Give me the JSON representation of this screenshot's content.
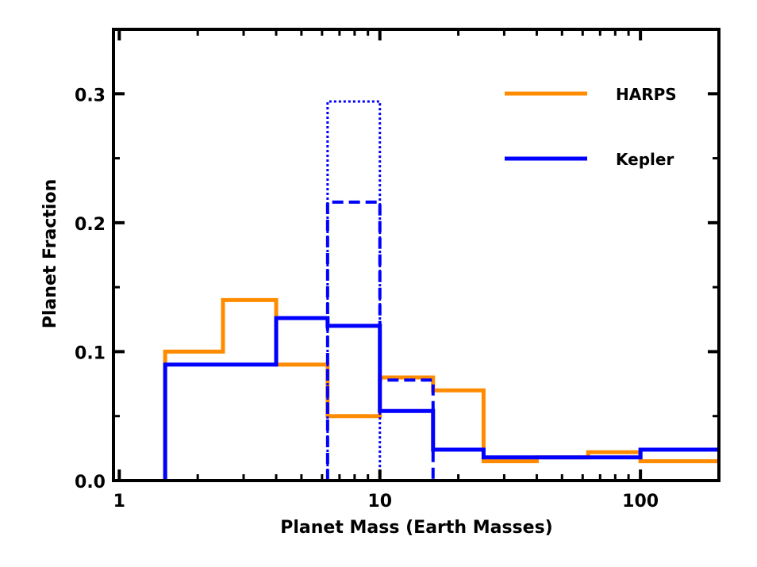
{
  "chart_data": {
    "type": "step",
    "title": "",
    "xlabel": "Planet Mass (Earth Masses)",
    "ylabel": "Planet Fraction",
    "xscale": "log",
    "xlim": [
      0.95,
      200
    ],
    "ylim": [
      0.0,
      0.35
    ],
    "xticks": [
      1,
      10,
      100
    ],
    "xtick_labels": [
      "1",
      "10",
      "100"
    ],
    "yticks": [
      0.0,
      0.1,
      0.2,
      0.3
    ],
    "ytick_labels": [
      "0.0",
      "0.1",
      "0.2",
      "0.3"
    ],
    "legend_position": "top-right",
    "series": [
      {
        "name": "HARPS",
        "color": "#ff8c00",
        "style": "solid",
        "in_legend": true,
        "bin_edges": [
          1.5,
          2.5,
          4.0,
          6.3,
          10.0,
          16.0,
          25.0,
          40.0,
          63.0,
          100.0,
          200.0
        ],
        "values": [
          0.1,
          0.14,
          0.09,
          0.05,
          0.08,
          0.07,
          0.015,
          0.018,
          0.022,
          0.015
        ]
      },
      {
        "name": "Kepler",
        "color": "#0000ff",
        "style": "solid",
        "in_legend": true,
        "bin_edges": [
          1.5,
          4.0,
          6.3,
          10.0,
          16.0,
          25.0,
          100.0,
          200.0
        ],
        "values": [
          0.09,
          0.126,
          0.12,
          0.054,
          0.024,
          0.018,
          0.024
        ]
      },
      {
        "name": "Kepler (dashed)",
        "color": "#0000ff",
        "style": "dashed",
        "in_legend": false,
        "bin_edges": [
          6.3,
          10.0,
          16.0
        ],
        "values": [
          0.216,
          0.078
        ]
      },
      {
        "name": "Kepler (dotted)",
        "color": "#0000ff",
        "style": "dotted",
        "in_legend": false,
        "bin_edges": [
          6.3,
          10.0
        ],
        "values": [
          0.294
        ]
      }
    ]
  }
}
